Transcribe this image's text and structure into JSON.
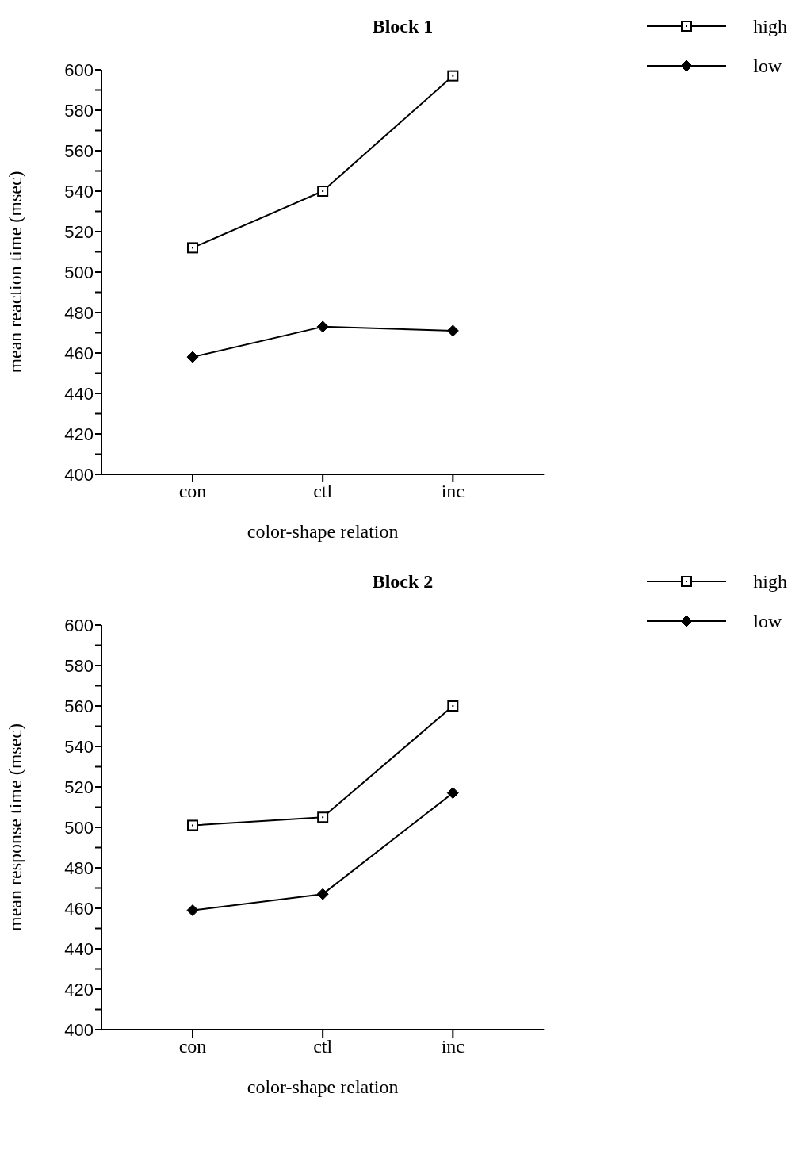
{
  "chart_data": [
    {
      "type": "line",
      "title": "Block 1",
      "xlabel": "color-shape relation",
      "ylabel": "mean reaction time (msec)",
      "categories": [
        "con",
        "ctl",
        "inc"
      ],
      "series": [
        {
          "name": "high",
          "color": "#000000",
          "marker": "square",
          "values": [
            512,
            540,
            597
          ]
        },
        {
          "name": "low",
          "color": "#000000",
          "marker": "diamond",
          "values": [
            458,
            473,
            471
          ]
        }
      ],
      "ylim": [
        400,
        600
      ],
      "yticks": [
        400,
        {
          "value": 410,
          "label": null
        },
        420,
        {
          "value": 430,
          "label": null
        },
        440,
        {
          "value": 450,
          "label": null
        },
        460,
        {
          "value": 470,
          "label": null
        },
        480,
        {
          "value": 490,
          "label": null
        },
        500,
        {
          "value": 510,
          "label": null
        },
        520,
        {
          "value": 530,
          "label": null
        },
        540,
        {
          "value": 550,
          "label": null
        },
        560,
        {
          "value": 570,
          "label": null
        },
        580,
        {
          "value": 590,
          "label": null
        },
        600
      ],
      "grid": false,
      "legend": "top right",
      "line_style": "solid"
    },
    {
      "type": "line",
      "title": "Block 2",
      "xlabel": "color-shape relation",
      "ylabel": "mean response time (msec)",
      "categories": [
        "con",
        "ctl",
        "inc"
      ],
      "series": [
        {
          "name": "high",
          "color": "#000000",
          "marker": "square",
          "values": [
            501,
            505,
            560
          ]
        },
        {
          "name": "low",
          "color": "#000000",
          "marker": "diamond",
          "values": [
            459,
            467,
            517
          ]
        }
      ],
      "ylim": [
        400,
        600
      ],
      "yticks": [
        400,
        {
          "value": 410,
          "label": null
        },
        420,
        {
          "value": 430,
          "label": null
        },
        440,
        {
          "value": 450,
          "label": null
        },
        460,
        {
          "value": 470,
          "label": null
        },
        480,
        {
          "value": 490,
          "label": null
        },
        500,
        {
          "value": 510,
          "label": null
        },
        520,
        {
          "value": 530,
          "label": null
        },
        540,
        {
          "value": 550,
          "label": null
        },
        560,
        {
          "value": 570,
          "label": null
        },
        580,
        {
          "value": 590,
          "label": null
        },
        600
      ],
      "grid": false,
      "legend": "top right",
      "line_style": "solid"
    }
  ]
}
